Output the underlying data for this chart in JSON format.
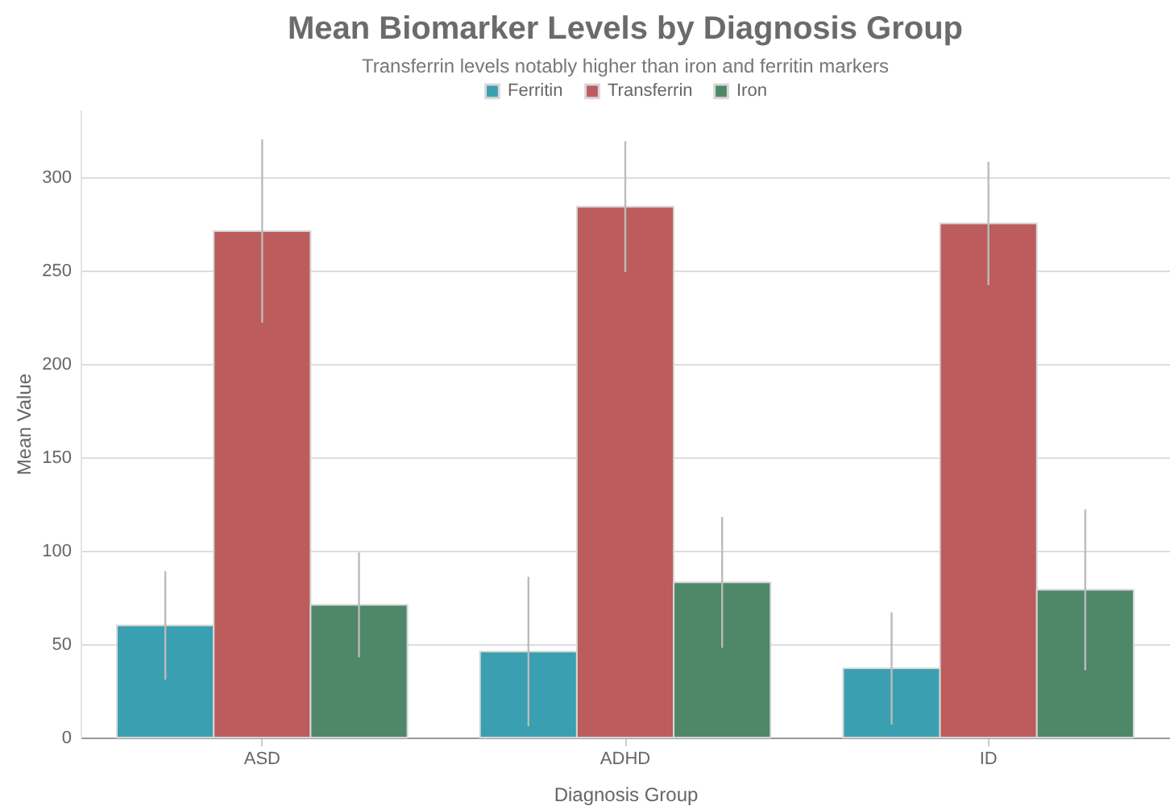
{
  "chart_data": {
    "type": "bar",
    "title": "Mean Biomarker Levels by Diagnosis Group",
    "subtitle": "Transferrin levels notably higher than iron and ferritin markers",
    "xlabel": "Diagnosis Group",
    "ylabel": "Mean Value",
    "categories": [
      "ASD",
      "ADHD",
      "ID"
    ],
    "series": [
      {
        "name": "Ferritin",
        "color": "#3a9fb0",
        "values": [
          60,
          46,
          37
        ],
        "errors": [
          29,
          40,
          30
        ]
      },
      {
        "name": "Transferrin",
        "color": "#bc5c5c",
        "values": [
          271,
          284,
          275
        ],
        "errors": [
          49,
          35,
          33
        ]
      },
      {
        "name": "Iron",
        "color": "#4f8769",
        "values": [
          71,
          83,
          79
        ],
        "errors": [
          28,
          35,
          43
        ]
      }
    ],
    "ylim": [
      0,
      336
    ],
    "yticks": [
      0,
      50,
      100,
      150,
      200,
      250,
      300
    ],
    "grid": "y",
    "legend": "top"
  }
}
